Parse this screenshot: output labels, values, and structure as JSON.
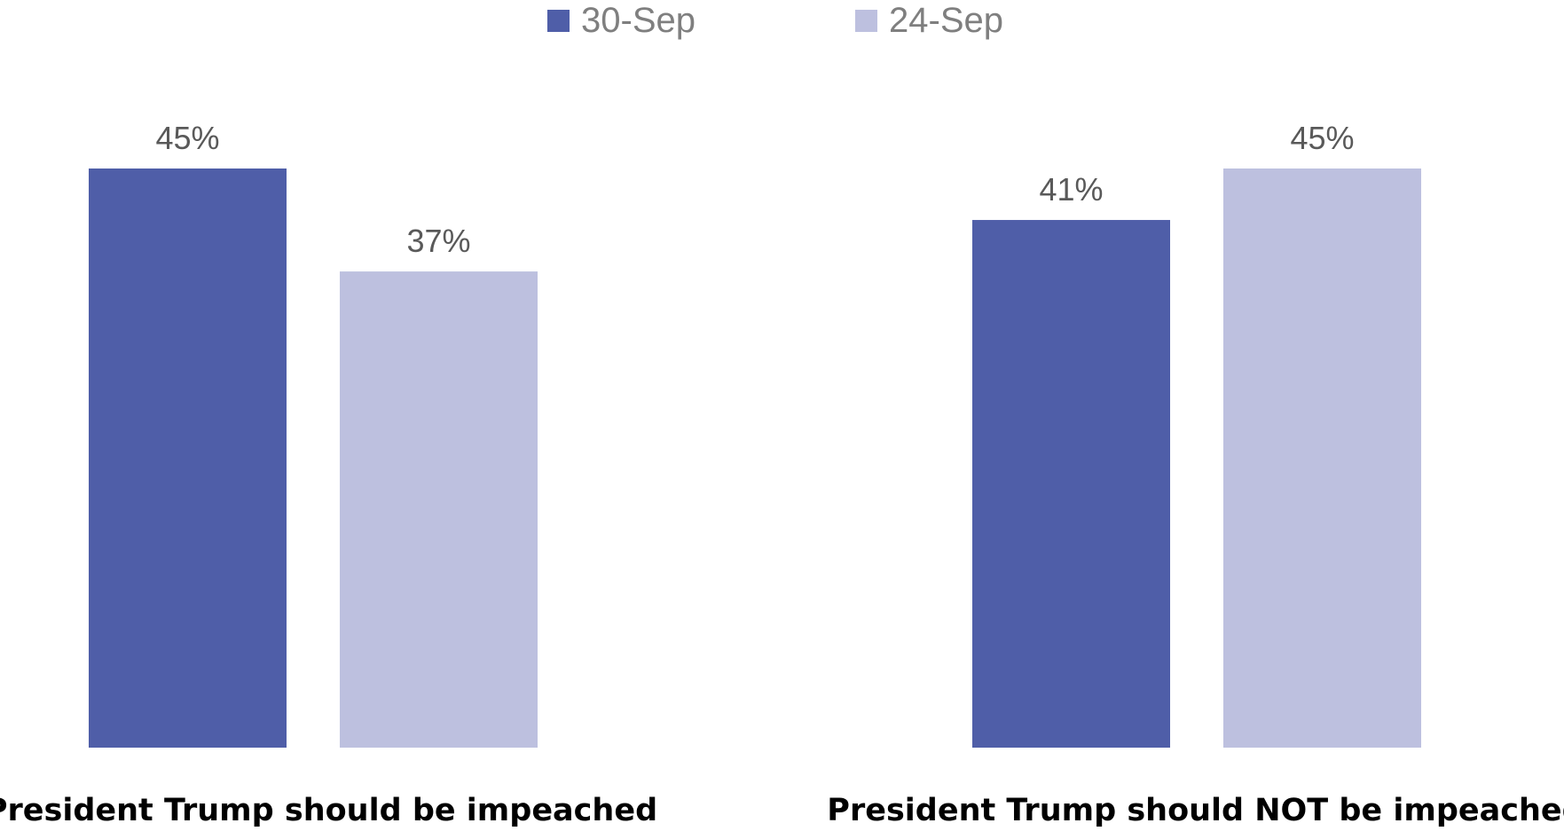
{
  "chart_data": {
    "type": "bar",
    "title": "",
    "xlabel": "",
    "ylabel": "",
    "categories": [
      "President Trump should be impeached",
      "President Trump should NOT be impeached"
    ],
    "series": [
      {
        "name": "30-Sep",
        "color": "#4f5ea8",
        "values": [
          45,
          41
        ],
        "labels": [
          "45%",
          "41%"
        ]
      },
      {
        "name": "24-Sep",
        "color": "#bdc0df",
        "values": [
          37,
          45
        ],
        "labels": [
          "37%",
          "45%"
        ]
      }
    ],
    "ylim": [
      0,
      45
    ],
    "grid": false,
    "legend_position": "top-center"
  }
}
